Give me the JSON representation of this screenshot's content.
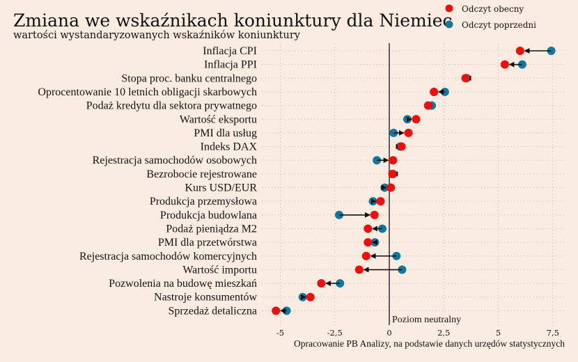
{
  "chart_data": {
    "type": "dumbbell",
    "title": "Zmiana we wskaźnikach koniunktury dla Niemiec",
    "subtitle": "wartości wystandaryzowanych wskaźników koniunktury",
    "xlabel": "",
    "ylabel": "",
    "xlim": [
      -5.6,
      8.0
    ],
    "x_ticks": [
      -5,
      -2.5,
      0,
      2.5,
      5,
      7.5
    ],
    "x_tick_labels": [
      "-5",
      "-2,5",
      "0",
      "2,5",
      "5",
      "7,5"
    ],
    "grid": true,
    "reference_line": {
      "value": 0,
      "label": "Poziom neutralny"
    },
    "legend": {
      "position": "top-right",
      "entries": [
        {
          "name": "Odczyt obecny",
          "color": "#f40b0b"
        },
        {
          "name": "Odczyt poprzedni",
          "color": "#10789f"
        }
      ]
    },
    "source": "Opracowanie PB Analizy, na podstawie danych urzędów statystycznych",
    "categories": [
      "Inflacja CPI",
      "Inflacja PPI",
      "Stopa proc. banku centralnego",
      "Oprocentowanie 10 letnich obligacji skarbowych",
      "Podaż kredytu dla sektora prywatnego",
      "Wartość eksportu",
      "PMI dla usług",
      "Indeks DAX",
      "Rejestracja samochodów osobowych",
      "Bezrobocie rejestrowane",
      "Kurs USD/EUR",
      "Produkcja przemysłowa",
      "Produkcja budowlana",
      "Podaż pieniądza M2",
      "PMI dla przetwórstwa",
      "Rejestracja samochodów komercyjnych",
      "Wartość importu",
      "Pozwolenia na budowę mieszkań",
      "Nastroje konsumentów",
      "Sprzedaż detaliczna"
    ],
    "series": [
      {
        "name": "Odczyt obecny",
        "values": [
          6.0,
          5.3,
          3.5,
          2.05,
          1.78,
          1.23,
          0.88,
          0.56,
          0.17,
          0.14,
          0.07,
          -0.4,
          -0.68,
          -0.98,
          -0.98,
          -1.06,
          -1.38,
          -3.12,
          -3.62,
          -5.2
        ]
      },
      {
        "name": "Odczyt poprzedni",
        "values": [
          7.43,
          6.1,
          3.55,
          2.55,
          1.95,
          0.83,
          0.2,
          0.5,
          -0.57,
          0.18,
          -0.21,
          -0.75,
          -2.3,
          -0.32,
          -0.66,
          0.33,
          0.59,
          -2.26,
          -3.97,
          -4.71
        ]
      }
    ]
  },
  "colors": {
    "background": "#fbece1",
    "current": "#f40b0b",
    "previous": "#10789f",
    "arrow": "#111111",
    "grid": "#c9bcb2",
    "zero_line": "#222222"
  }
}
